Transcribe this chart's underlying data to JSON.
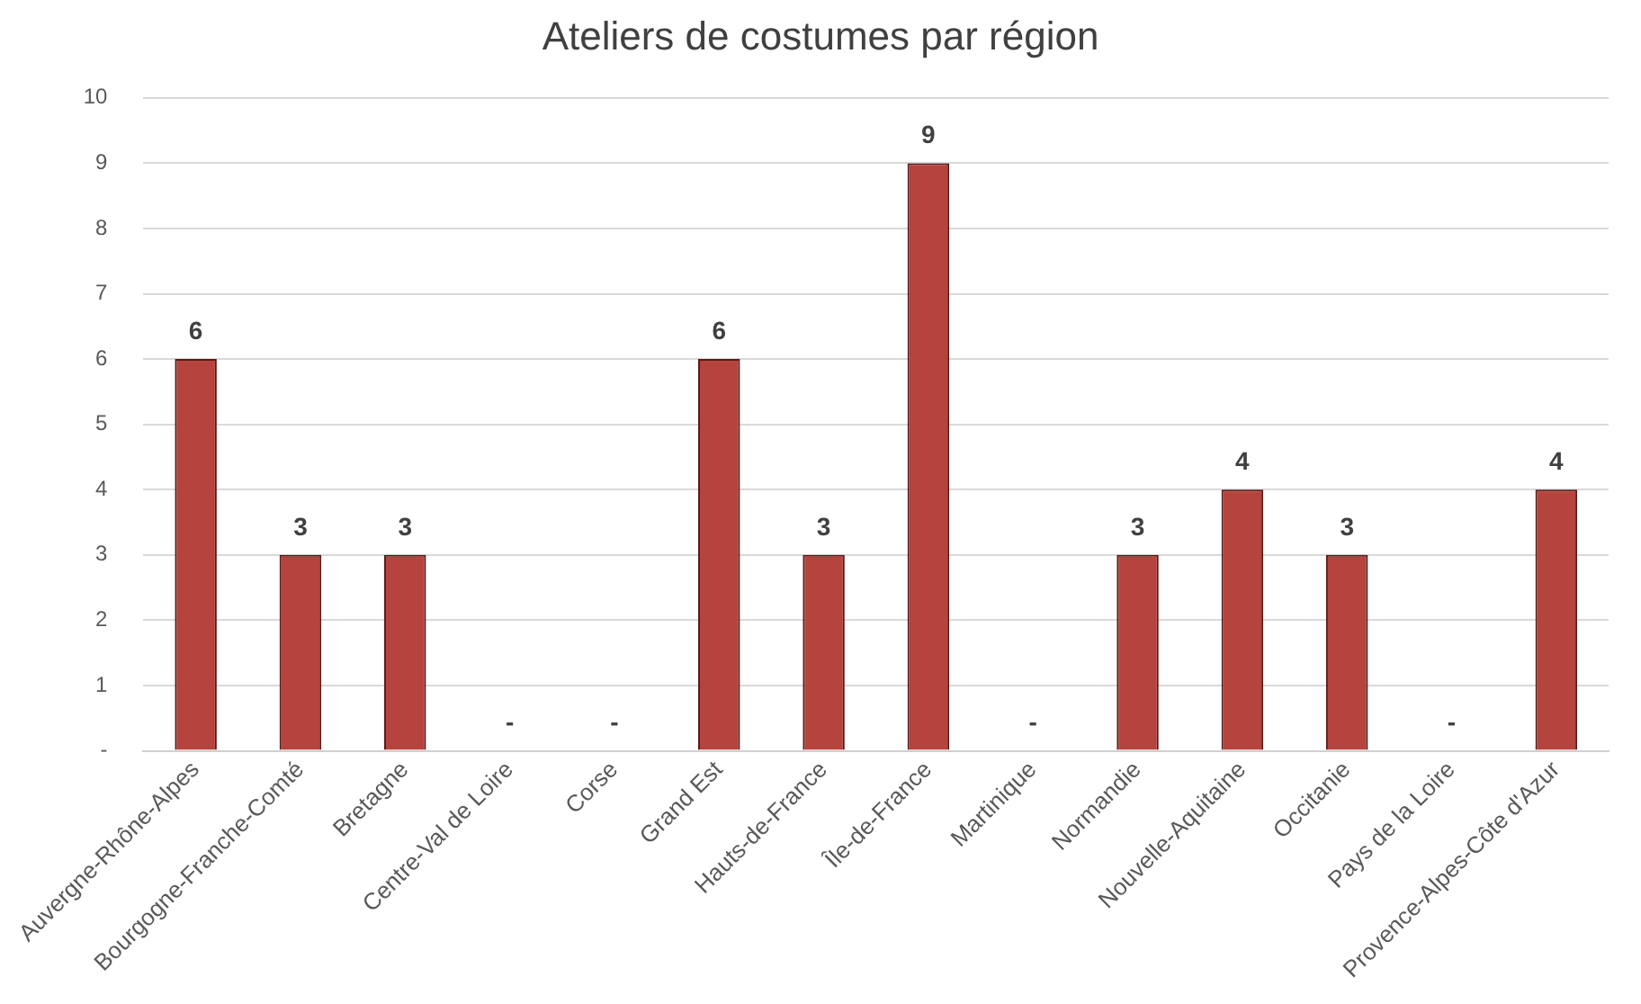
{
  "chart_data": {
    "type": "bar",
    "title": "Ateliers de costumes par région",
    "categories": [
      "Auvergne-Rhône-Alpes",
      "Bourgogne-Franche-Comté",
      "Bretagne",
      "Centre-Val de Loire",
      "Corse",
      "Grand Est",
      "Hauts-de-France",
      "Île-de-France",
      "Martinique",
      "Normandie",
      "Nouvelle-Aquitaine",
      "Occitanie",
      "Pays de la Loire",
      "Provence-Alpes-Côte d'Azur"
    ],
    "values": [
      6,
      3,
      3,
      0,
      0,
      6,
      3,
      9,
      0,
      3,
      4,
      3,
      0,
      4
    ],
    "value_labels": [
      "6",
      "3",
      "3",
      "-",
      "-",
      "6",
      "3",
      "9",
      "-",
      "3",
      "4",
      "3",
      "-",
      "4"
    ],
    "color": "#b5433e",
    "ylim": [
      0,
      10
    ],
    "yticks": [
      {
        "value": 0,
        "label": "-"
      },
      1,
      2,
      3,
      4,
      5,
      6,
      7,
      8,
      9,
      10
    ],
    "grid": "y",
    "legend": false
  }
}
